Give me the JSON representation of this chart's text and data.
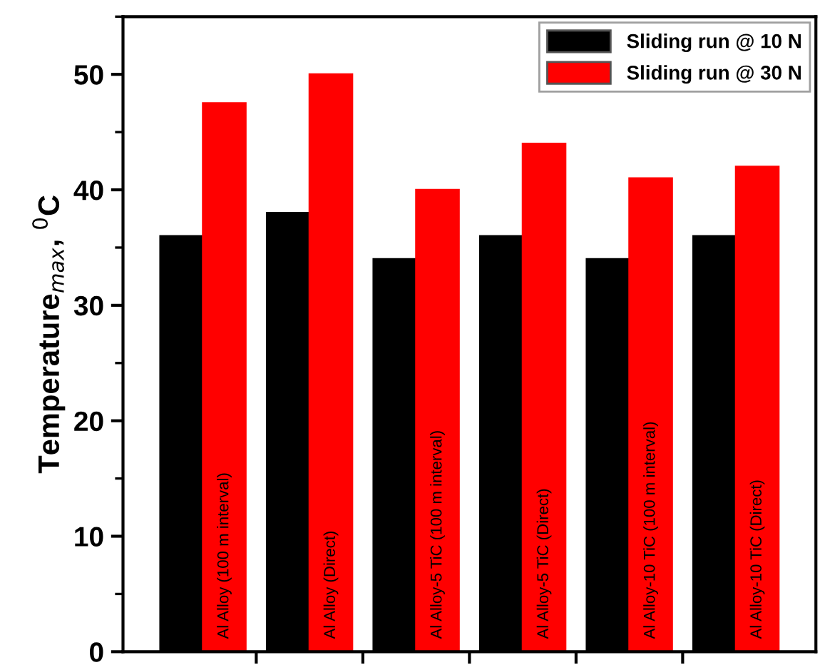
{
  "chart_data": {
    "type": "bar",
    "ylabel": "Temperature$_{max}$, $^{0}$C",
    "categories": [
      "Al Alloy (100 m interval)",
      "Al Alloy (Direct)",
      "Al Alloy-5 TiC (100 m interval)",
      "Al Alloy-5 TiC (Direct)",
      "Al Alloy-10 TiC (100 m interval)",
      "Al Alloy-10 TiC (Direct)"
    ],
    "series": [
      {
        "name": "Sliding run @ 10 N",
        "color": "#000000",
        "values": [
          36,
          38,
          34,
          36,
          34,
          36
        ]
      },
      {
        "name": "Sliding run @ 30 N",
        "color": "#ff0000",
        "values": [
          47.5,
          50,
          40,
          44,
          41,
          42
        ]
      }
    ],
    "ylim": [
      0,
      55
    ],
    "yticks": [
      0,
      10,
      20,
      30,
      40,
      50
    ],
    "grid": false,
    "legend": "top right"
  }
}
